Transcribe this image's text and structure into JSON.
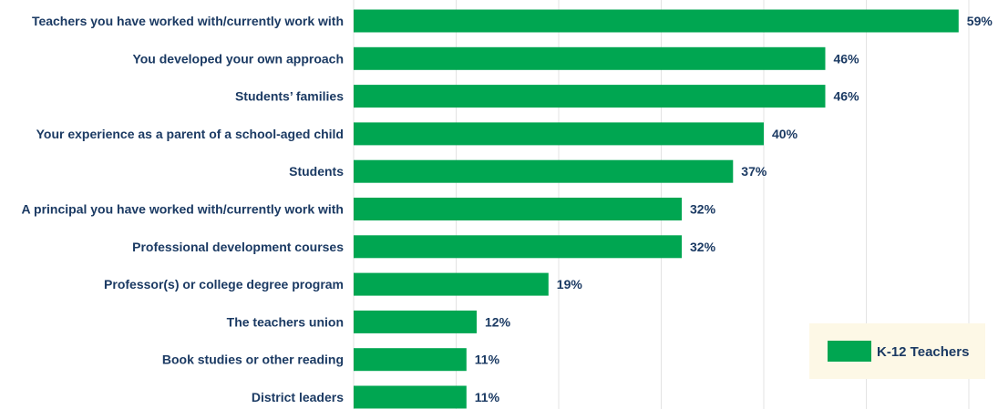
{
  "chart_data": {
    "type": "bar",
    "orientation": "horizontal",
    "categories": [
      "Teachers you have worked with/currently work with",
      "You developed your own approach",
      "Students’ families",
      "Your experience as a parent of a school-aged child",
      "Students",
      "A principal you have worked with/currently work with",
      "Professional development courses",
      "Professor(s) or college degree program",
      "The teachers union",
      "Book studies or other reading",
      "District leaders"
    ],
    "series": [
      {
        "name": "K-12 Teachers",
        "values": [
          59,
          46,
          46,
          40,
          37,
          32,
          32,
          19,
          12,
          11,
          11
        ],
        "value_labels": [
          "59%",
          "46%",
          "46%",
          "40%",
          "37%",
          "32%",
          "32%",
          "19%",
          "12%",
          "11%",
          "11%"
        ],
        "color": "#00a651"
      }
    ],
    "xlim": [
      0,
      60
    ],
    "grid": true,
    "legend_position": "bottom-right",
    "colors": {
      "bar": "#00a651",
      "text": "#1b3a63",
      "grid": "#e3e3e3",
      "legend_background": "#fdf8e6"
    }
  }
}
